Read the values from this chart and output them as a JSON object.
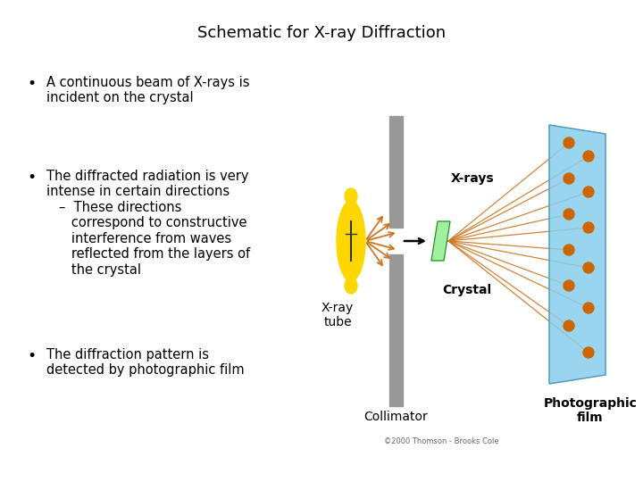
{
  "title": "Schematic for X-ray Diffraction",
  "title_fontsize": 13,
  "background_color": "#ffffff",
  "text_fontsize": 10.5,
  "copyright_text": "©2000 Thomson - Brooks Cole",
  "bullet1": "A continuous beam of X-rays is\nincident on the crystal",
  "bullet2_main": "The diffracted radiation is very\nintense in certain directions",
  "bullet2_sub": "–  These directions\n   correspond to constructive\n   interference from waves\n   reflected from the layers of\n   the crystal",
  "bullet3": "The diffraction pattern is\ndetected by photographic film",
  "tube_color": "#FFD700",
  "tube_dark": "#333333",
  "collimator_color": "#999999",
  "crystal_color": "#90EE90",
  "crystal_edge_color": "#228B22",
  "film_color": "#87CEEB",
  "film_edge_color": "#5599BB",
  "ray_color": "#CC7722",
  "dot_color": "#CC6600",
  "arrow_color": "#000000",
  "label_xrays": "X-rays",
  "label_crystal": "Crystal",
  "label_tube": "X-ray\ntube",
  "label_collimator": "Collimator",
  "label_film": "Photographic\nfilm",
  "label_fs": 9,
  "collimator_label_fs": 10,
  "film_label_fs": 10
}
